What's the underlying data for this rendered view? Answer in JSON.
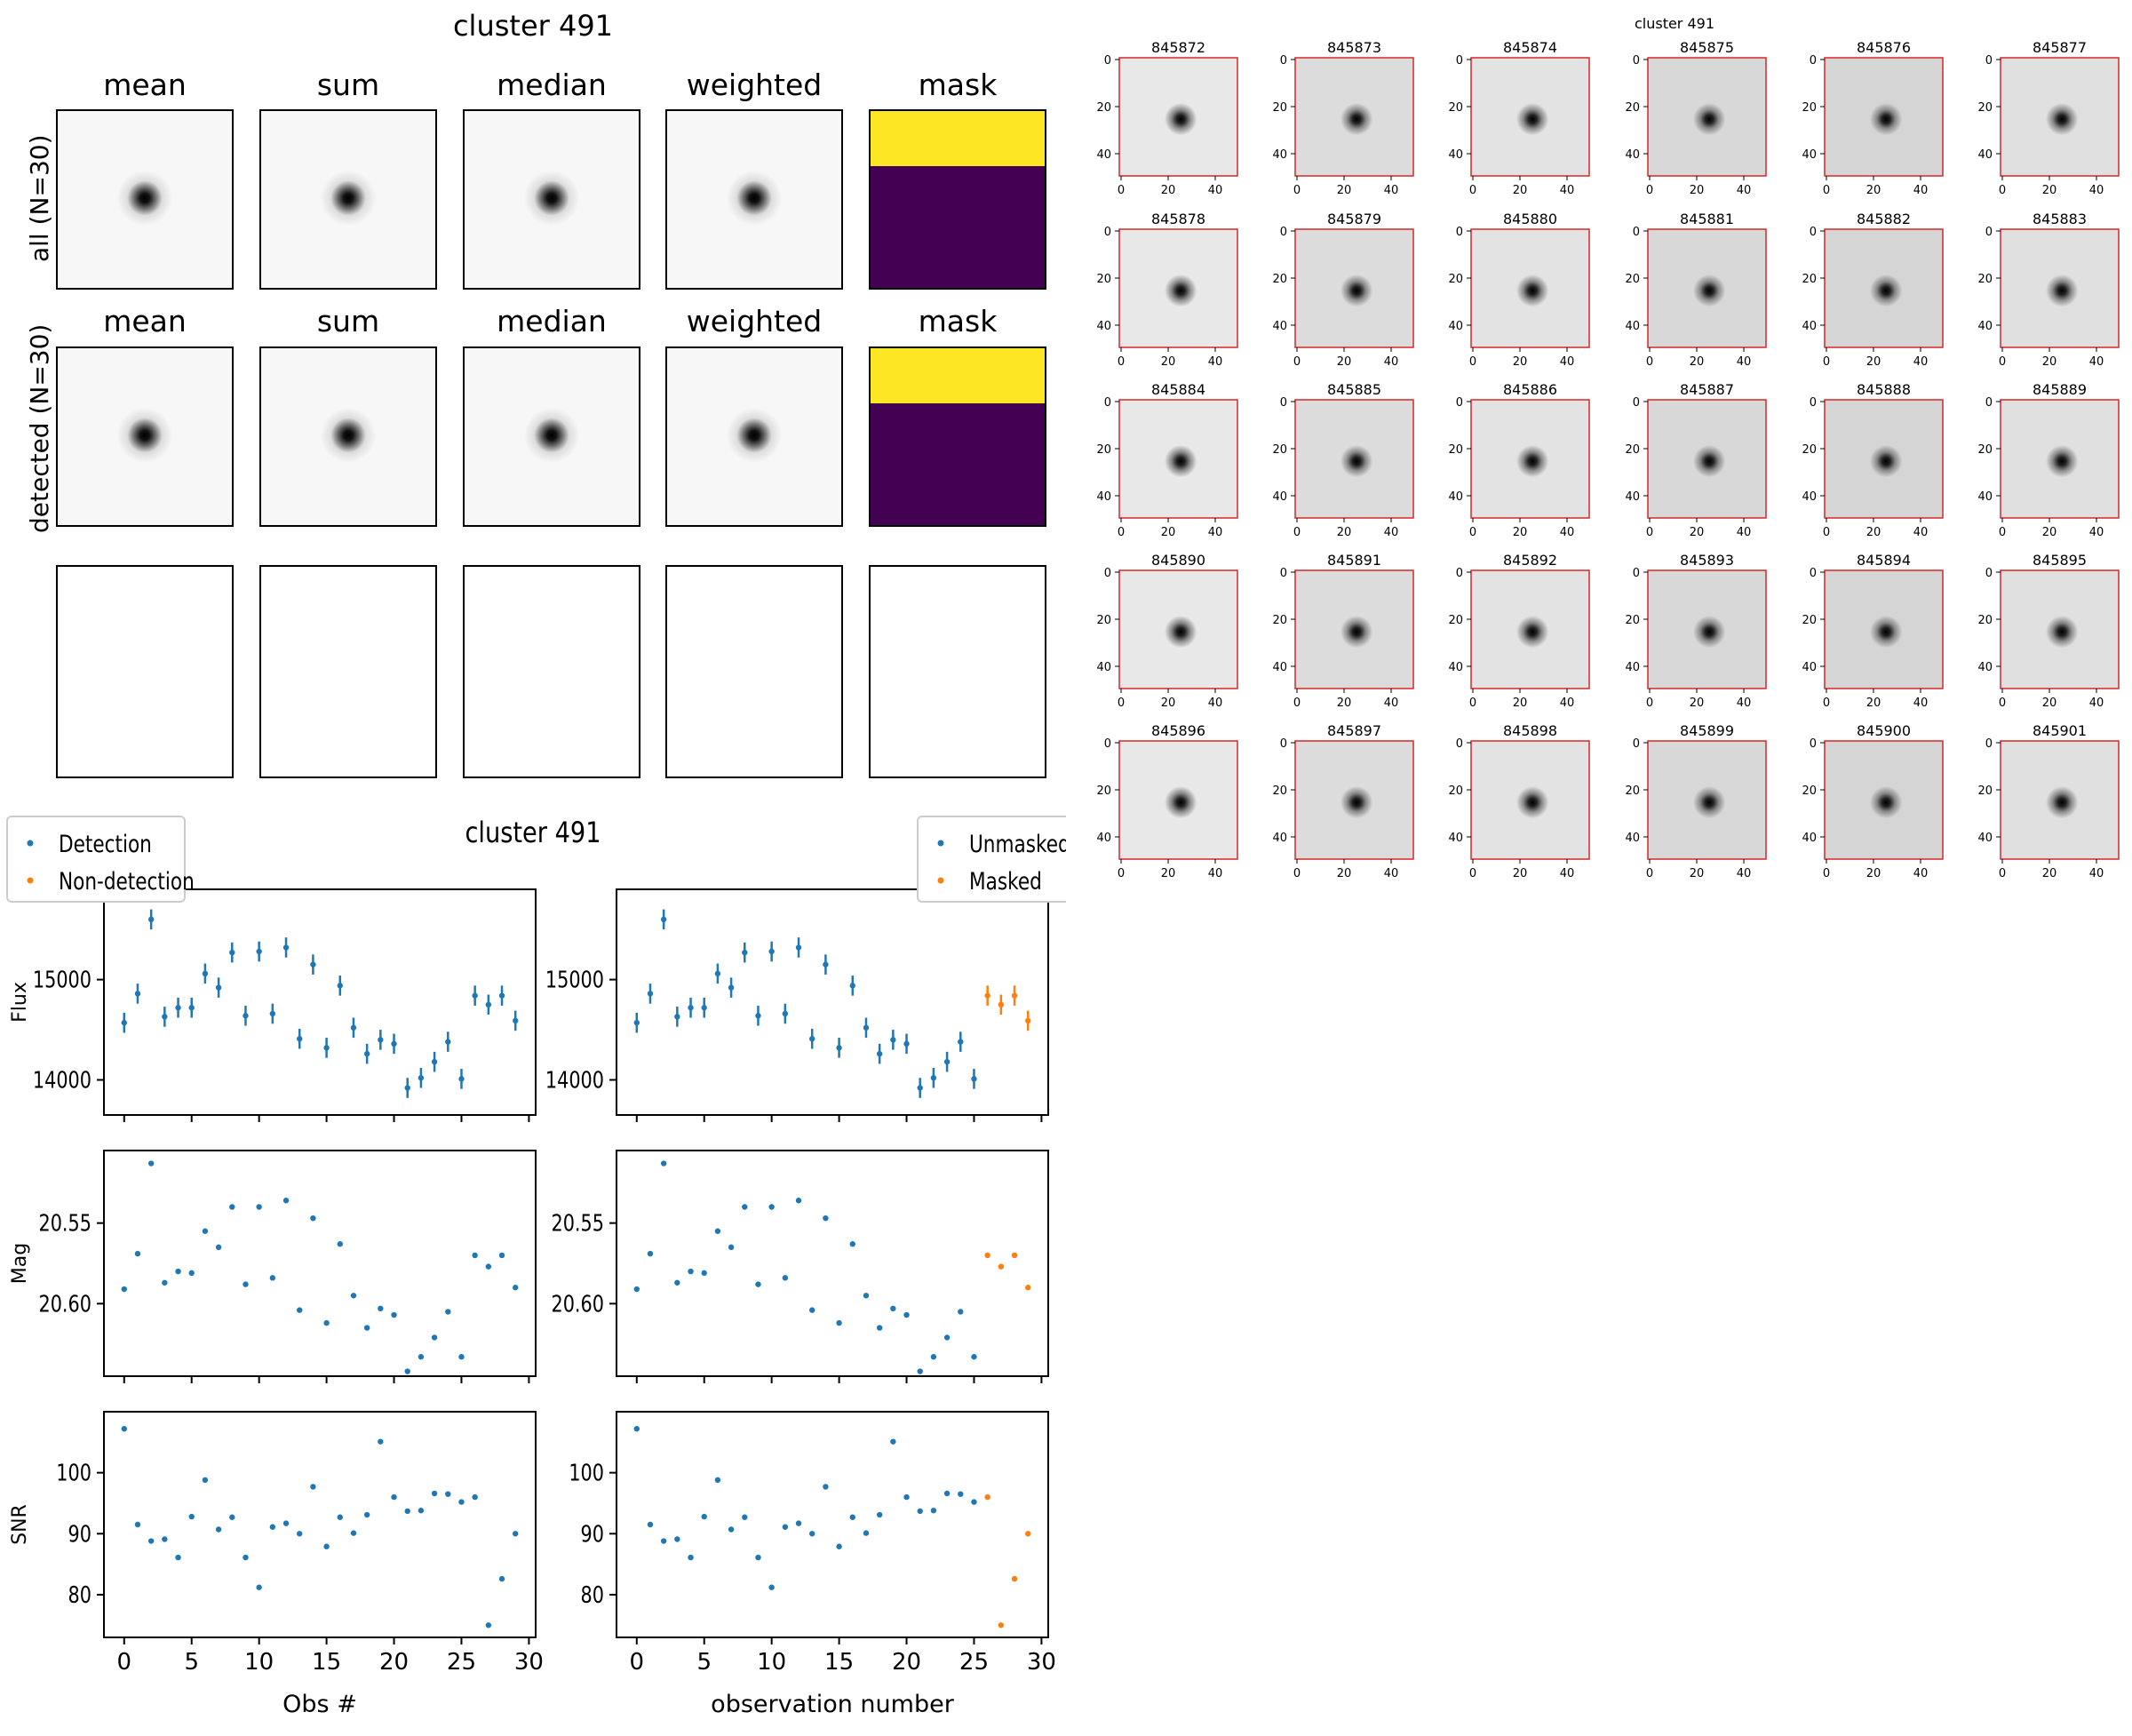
{
  "stack": {
    "title": "cluster 491",
    "methods": [
      "mean",
      "sum",
      "median",
      "weighted",
      "mask"
    ],
    "rows": [
      {
        "label": "all (N=30)"
      },
      {
        "label": "detected (N=30)"
      }
    ],
    "colors": {
      "mask_top": "#fde725",
      "mask_bottom": "#440154"
    }
  },
  "lightcurve": {
    "title": "cluster 491",
    "left_legend": [
      "Detection",
      "Non-detection"
    ],
    "right_legend": [
      "Unmasked",
      "Masked"
    ],
    "ylabels": [
      "Flux",
      "Mag",
      "SNR"
    ],
    "xlabel_left": "Obs #",
    "xlabel_right": "observation number",
    "colors": {
      "blue": "#1f77b4",
      "orange": "#ff7f0e"
    }
  },
  "cutouts": {
    "title": "cluster 491",
    "ids": [
      "845872",
      "845873",
      "845874",
      "845875",
      "845876",
      "845877",
      "845878",
      "845879",
      "845880",
      "845881",
      "845882",
      "845883",
      "845884",
      "845885",
      "845886",
      "845887",
      "845888",
      "845889",
      "845890",
      "845891",
      "845892",
      "845893",
      "845894",
      "845895",
      "845896",
      "845897",
      "845898",
      "845899",
      "845900",
      "845901"
    ],
    "yticks": [
      "0",
      "20",
      "40"
    ],
    "xticks": [
      "0",
      "20",
      "40"
    ],
    "border_color": "#d62728"
  },
  "chart_data": [
    {
      "type": "scatter",
      "title": "cluster 491",
      "xlabel": "Obs #",
      "ylabel": "Flux",
      "x": [
        0,
        1,
        2,
        3,
        4,
        5,
        6,
        7,
        8,
        9,
        10,
        11,
        12,
        13,
        14,
        15,
        16,
        17,
        18,
        19,
        20,
        21,
        22,
        23,
        24,
        25,
        26,
        27,
        28,
        29
      ],
      "series": [
        {
          "name": "Detection",
          "color": "#1f77b4",
          "values": [
            14570,
            14860,
            15600,
            14630,
            14720,
            14720,
            15060,
            14920,
            15270,
            14640,
            15280,
            14660,
            15320,
            14410,
            15150,
            14320,
            14940,
            14520,
            14260,
            14400,
            14360,
            13920,
            14020,
            14180,
            14380,
            14010,
            14840,
            14750,
            14840,
            14590
          ],
          "yerr": 100
        }
      ],
      "ylim": [
        13650,
        15900
      ],
      "yticks": [
        14000,
        15000
      ],
      "xticks": [
        0,
        5,
        10,
        15,
        20,
        25,
        30
      ],
      "legend": "top-left"
    },
    {
      "type": "scatter",
      "xlabel": "observation number",
      "ylabel": "Flux",
      "x": [
        0,
        1,
        2,
        3,
        4,
        5,
        6,
        7,
        8,
        9,
        10,
        11,
        12,
        13,
        14,
        15,
        16,
        17,
        18,
        19,
        20,
        21,
        22,
        23,
        24,
        25,
        26,
        27,
        28,
        29
      ],
      "series": [
        {
          "name": "Unmasked",
          "color": "#1f77b4",
          "values": [
            14570,
            14860,
            15600,
            14630,
            14720,
            14720,
            15060,
            14920,
            15270,
            14640,
            15280,
            14660,
            15320,
            14410,
            15150,
            14320,
            14940,
            14520,
            14260,
            14400,
            14360,
            13920,
            14020,
            14180,
            14380,
            14010,
            null,
            null,
            null,
            null
          ],
          "yerr": 100
        },
        {
          "name": "Masked",
          "color": "#ff7f0e",
          "values": [
            null,
            null,
            null,
            null,
            null,
            null,
            null,
            null,
            null,
            null,
            null,
            null,
            null,
            null,
            null,
            null,
            null,
            null,
            null,
            null,
            null,
            null,
            null,
            null,
            null,
            null,
            14840,
            14750,
            14840,
            14590
          ],
          "yerr": 100
        }
      ],
      "ylim": [
        13650,
        15900
      ],
      "yticks": [
        14000,
        15000
      ],
      "legend": "top-right"
    },
    {
      "type": "scatter",
      "ylabel": "Mag",
      "x": [
        0,
        1,
        2,
        3,
        4,
        5,
        6,
        7,
        8,
        9,
        10,
        11,
        12,
        13,
        14,
        15,
        16,
        17,
        18,
        19,
        20,
        21,
        22,
        23,
        24,
        25,
        26,
        27,
        28,
        29
      ],
      "series": [
        {
          "name": "Detection",
          "color": "#1f77b4",
          "values": [
            20.591,
            20.569,
            20.513,
            20.587,
            20.58,
            20.581,
            20.555,
            20.565,
            20.54,
            20.588,
            20.54,
            20.584,
            20.536,
            20.604,
            20.547,
            20.612,
            20.563,
            20.595,
            20.615,
            20.603,
            20.607,
            20.642,
            20.633,
            20.621,
            20.605,
            20.633,
            20.57,
            20.577,
            20.57,
            20.59
          ]
        }
      ],
      "ylim": [
        20.645,
        20.505
      ],
      "yticks": [
        20.55,
        20.6
      ]
    },
    {
      "type": "scatter",
      "ylabel": "Mag",
      "x": [
        0,
        1,
        2,
        3,
        4,
        5,
        6,
        7,
        8,
        9,
        10,
        11,
        12,
        13,
        14,
        15,
        16,
        17,
        18,
        19,
        20,
        21,
        22,
        23,
        24,
        25,
        26,
        27,
        28,
        29
      ],
      "series": [
        {
          "name": "Unmasked",
          "color": "#1f77b4",
          "values": [
            20.591,
            20.569,
            20.513,
            20.587,
            20.58,
            20.581,
            20.555,
            20.565,
            20.54,
            20.588,
            20.54,
            20.584,
            20.536,
            20.604,
            20.547,
            20.612,
            20.563,
            20.595,
            20.615,
            20.603,
            20.607,
            20.642,
            20.633,
            20.621,
            20.605,
            20.633,
            null,
            null,
            null,
            null
          ]
        },
        {
          "name": "Masked",
          "color": "#ff7f0e",
          "values": [
            null,
            null,
            null,
            null,
            null,
            null,
            null,
            null,
            null,
            null,
            null,
            null,
            null,
            null,
            null,
            null,
            null,
            null,
            null,
            null,
            null,
            null,
            null,
            null,
            null,
            null,
            20.57,
            20.577,
            20.57,
            20.59
          ]
        }
      ],
      "ylim": [
        20.645,
        20.505
      ],
      "yticks": [
        20.55,
        20.6
      ]
    },
    {
      "type": "scatter",
      "ylabel": "SNR",
      "xlabel": "Obs #",
      "x": [
        0,
        1,
        2,
        3,
        4,
        5,
        6,
        7,
        8,
        9,
        10,
        11,
        12,
        13,
        14,
        15,
        16,
        17,
        18,
        19,
        20,
        21,
        22,
        23,
        24,
        25,
        26,
        27,
        28,
        29
      ],
      "series": [
        {
          "name": "Detection",
          "color": "#1f77b4",
          "values": [
            107.2,
            91.5,
            88.8,
            89.1,
            86.1,
            92.8,
            98.8,
            90.7,
            92.7,
            86.1,
            81.2,
            91.1,
            91.7,
            90.0,
            97.7,
            87.9,
            92.7,
            90.1,
            93.1,
            105.1,
            96.0,
            93.7,
            93.8,
            96.6,
            96.5,
            95.2,
            96.0,
            75.0,
            82.6,
            90.0
          ]
        }
      ],
      "ylim": [
        73,
        110
      ],
      "yticks": [
        80,
        90,
        100
      ],
      "xticks": [
        0,
        5,
        10,
        15,
        20,
        25,
        30
      ]
    },
    {
      "type": "scatter",
      "ylabel": "SNR",
      "xlabel": "observation number",
      "x": [
        0,
        1,
        2,
        3,
        4,
        5,
        6,
        7,
        8,
        9,
        10,
        11,
        12,
        13,
        14,
        15,
        16,
        17,
        18,
        19,
        20,
        21,
        22,
        23,
        24,
        25,
        26,
        27,
        28,
        29
      ],
      "series": [
        {
          "name": "Unmasked",
          "color": "#1f77b4",
          "values": [
            107.2,
            91.5,
            88.8,
            89.1,
            86.1,
            92.8,
            98.8,
            90.7,
            92.7,
            86.1,
            81.2,
            91.1,
            91.7,
            90.0,
            97.7,
            87.9,
            92.7,
            90.1,
            93.1,
            105.1,
            96.0,
            93.7,
            93.8,
            96.6,
            96.5,
            95.2,
            null,
            null,
            null,
            null
          ]
        },
        {
          "name": "Masked",
          "color": "#ff7f0e",
          "values": [
            null,
            null,
            null,
            null,
            null,
            null,
            null,
            null,
            null,
            null,
            null,
            null,
            null,
            null,
            null,
            null,
            null,
            null,
            null,
            null,
            null,
            null,
            null,
            null,
            null,
            null,
            96.0,
            75.0,
            82.6,
            90.0
          ]
        }
      ],
      "ylim": [
        73,
        110
      ],
      "yticks": [
        80,
        90,
        100
      ],
      "xticks": [
        0,
        5,
        10,
        15,
        20,
        25,
        30
      ]
    }
  ]
}
